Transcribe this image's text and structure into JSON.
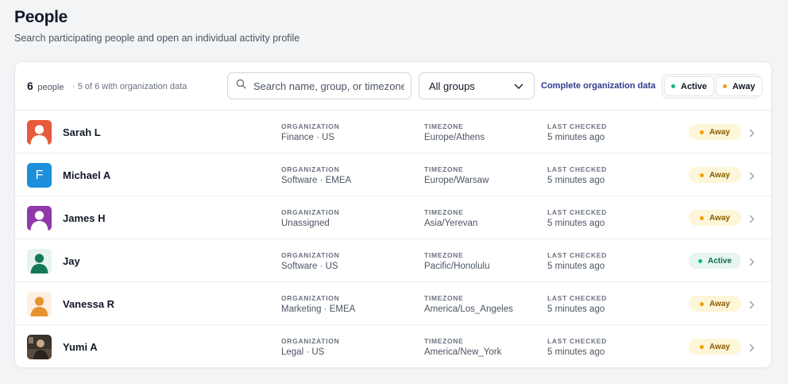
{
  "page": {
    "title": "People",
    "subtitle": "Search participating people and open an individual activity profile"
  },
  "toolbar": {
    "count": "6",
    "count_word": "people",
    "org_note": "· 5 of 6 with organization data",
    "search_placeholder": "Search name, group, or timezone",
    "search_value": "",
    "group_select": "All groups",
    "complete_link": "Complete organization data",
    "filters": [
      {
        "label": "Active",
        "color": "#10b981"
      },
      {
        "label": "Away",
        "color": "#f59e0b"
      }
    ]
  },
  "columns": {
    "organization": "ORGANIZATION",
    "timezone": "TIMEZONE",
    "last_checked": "LAST CHECKED"
  },
  "people": [
    {
      "name": "Sarah L",
      "avatar": "person-icon",
      "avatar_color": "#e85a3c",
      "organization": "Finance · US",
      "timezone": "Europe/Athens",
      "last_checked": "5 minutes ago",
      "status": "Away"
    },
    {
      "name": "Michael A",
      "avatar": "letter-avatar",
      "avatar_letter": "F",
      "avatar_color": "#1d8fdb",
      "organization": "Software · EMEA",
      "timezone": "Europe/Warsaw",
      "last_checked": "5 minutes ago",
      "status": "Away"
    },
    {
      "name": "James H",
      "avatar": "person-icon",
      "avatar_color": "#8e3aa8",
      "organization": "Unassigned",
      "timezone": "Asia/Yerevan",
      "last_checked": "5 minutes ago",
      "status": "Away"
    },
    {
      "name": "Jay",
      "avatar": "person-icon",
      "avatar_color": "#147a55",
      "avatar_bg": "#e8f3ee",
      "organization": "Software · US",
      "timezone": "Pacific/Honolulu",
      "last_checked": "5 minutes ago",
      "status": "Active"
    },
    {
      "name": "Vanessa R",
      "avatar": "person-icon",
      "avatar_color": "#e8922f",
      "avatar_bg": "#fdf0e1",
      "organization": "Marketing · EMEA",
      "timezone": "America/Los_Angeles",
      "last_checked": "5 minutes ago",
      "status": "Away"
    },
    {
      "name": "Yumi A",
      "avatar": "photo-avatar",
      "avatar_color": "#3a322c",
      "organization": "Legal · US",
      "timezone": "America/New_York",
      "last_checked": "5 minutes ago",
      "status": "Away"
    }
  ],
  "status_colors": {
    "Away": "#f59e0b",
    "Active": "#10b981"
  }
}
